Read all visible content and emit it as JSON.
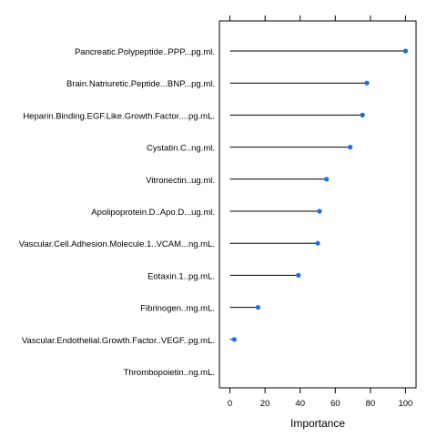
{
  "chart_data": {
    "type": "dotplot",
    "categories": [
      "Pancreatic.Polypeptide..PPP...pg.ml.",
      "Brain.Natriuretic.Peptide...BNP...pg.ml.",
      "Heparin.Binding.EGF.Like.Growth.Factor....pg.mL.",
      "Cystatin.C..ng.ml.",
      "Vitronectin..ug.ml.",
      "Apolipoprotein.D..Apo.D...ug.ml.",
      "Vascular.Cell.Adhesion.Molecule.1..VCAM...ng.mL.",
      "Eotaxin.1..pg.mL.",
      "Fibrinogen..mg.mL.",
      "Vascular.Endothelial.Growth.Factor..VEGF..pg.mL.",
      "Thrombopoietin..ng.mL."
    ],
    "values": [
      100,
      78,
      75.5,
      68.5,
      55,
      51,
      50,
      39,
      16,
      2.5,
      0
    ],
    "xlabel": "Importance",
    "ylabel": "",
    "title": "",
    "xlim": [
      -6,
      106
    ],
    "xticks": [
      0,
      20,
      40,
      60,
      80,
      100
    ],
    "grid": false,
    "colors": {
      "point": "#1a6ee8",
      "line": "#000000",
      "frame": "#000000"
    }
  }
}
